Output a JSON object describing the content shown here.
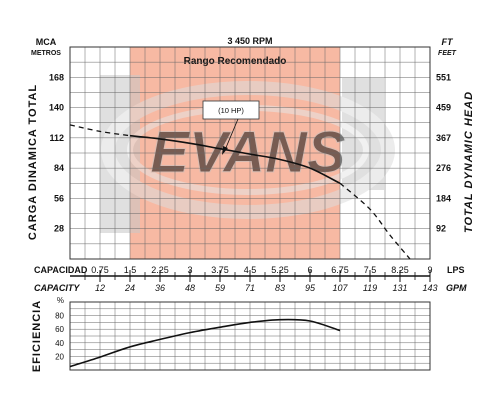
{
  "chart_data": [
    {
      "type": "line",
      "title": "3 450 RPM",
      "ylabel_left": "CARGA DINAMICA TOTAL",
      "ylabel_right": "TOTAL DYNAMIC HEAD",
      "unit_left_top": "MCA",
      "unit_left_bottom": "METROS",
      "unit_right_top": "FT",
      "unit_right_bottom": "FEET",
      "y_ticks_left": [
        "28",
        "56",
        "84",
        "112",
        "140",
        "168"
      ],
      "y_ticks_right": [
        "92",
        "184",
        "276",
        "367",
        "459",
        "551"
      ],
      "ylim": [
        0,
        196
      ],
      "xlim": [
        0,
        9
      ],
      "recommended_range": {
        "label": "Rango Recomendado",
        "x_start": 1.5,
        "x_end": 6.75,
        "color": "#f7b9a3"
      },
      "annotation": "(10 HP)",
      "watermark": "EVANS",
      "grid": true,
      "series": [
        {
          "name": "",
          "style": "solid",
          "x": [
            1.5,
            2.25,
            3.0,
            3.75,
            4.5,
            5.25,
            6.0,
            6.75
          ],
          "y": [
            114,
            111,
            107,
            102,
            97,
            92,
            84,
            70
          ]
        },
        {
          "name": "",
          "style": "dashed",
          "x": [
            0.0,
            0.75,
            1.5,
            6.75,
            7.5,
            8.0,
            8.5
          ],
          "y": [
            124,
            118,
            114,
            70,
            46,
            22,
            0
          ]
        }
      ]
    },
    {
      "type": "line",
      "ylabel": "EFICIENCIA",
      "unit": "%",
      "y_ticks": [
        "20",
        "40",
        "60",
        "80"
      ],
      "ylim": [
        0,
        100
      ],
      "xlim": [
        0,
        9
      ],
      "grid": true,
      "series": [
        {
          "name": "",
          "style": "solid",
          "x": [
            0.0,
            0.75,
            1.5,
            2.25,
            3.0,
            3.75,
            4.5,
            5.25,
            6.0,
            6.75
          ],
          "y": [
            5,
            19,
            34,
            45,
            55,
            63,
            70,
            74,
            72,
            58
          ]
        }
      ]
    }
  ],
  "x_axis": {
    "label_top": "CAPACIDAD",
    "ticks_top": [
      "0.75",
      "1.5",
      "2.25",
      "3",
      "3.75",
      "4.5",
      "5.25",
      "6",
      "6.75",
      "7.5",
      "8.25",
      "9"
    ],
    "unit_top": "LPS",
    "label_bottom": "CAPACITY",
    "ticks_bottom": [
      "12",
      "24",
      "36",
      "48",
      "59",
      "71",
      "83",
      "95",
      "107",
      "119",
      "131",
      "143"
    ],
    "unit_bottom": "GPM"
  },
  "colors": {
    "range": "#f7b9a3",
    "line": "#111111",
    "grid": "#555555",
    "watermark": "#d9d9d9"
  }
}
